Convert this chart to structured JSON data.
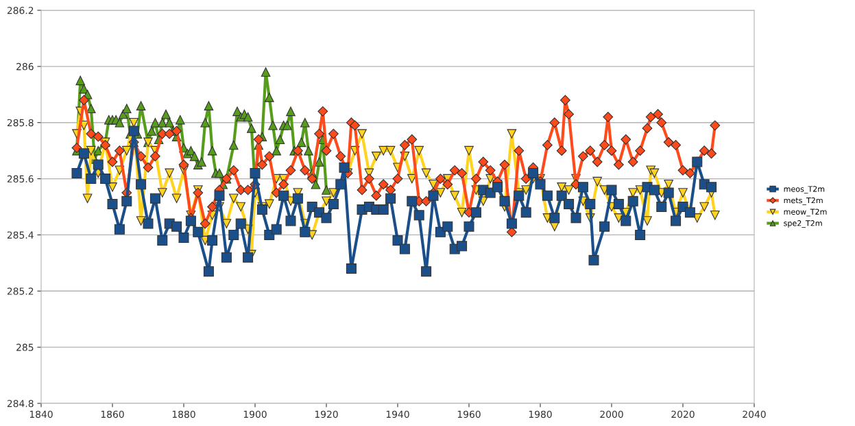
{
  "chart_data": {
    "type": "line",
    "xlim": [
      1840,
      2040
    ],
    "xticks": [
      1840,
      1860,
      1880,
      1900,
      1920,
      1940,
      1960,
      1980,
      2000,
      2020,
      2040
    ],
    "ylim": [
      284.8,
      286.2
    ],
    "yticks": [
      284.8,
      285,
      285.2,
      285.4,
      285.6,
      285.8,
      286,
      286.2
    ],
    "grid": "y",
    "legend": "right",
    "series": [
      {
        "name": "meos_T2m",
        "color": "#1b4f8a",
        "marker": "square",
        "x": [
          1850,
          1852,
          1854,
          1856,
          1858,
          1860,
          1862,
          1864,
          1866,
          1868,
          1870,
          1872,
          1874,
          1876,
          1878,
          1880,
          1882,
          1884,
          1887,
          1888,
          1890,
          1892,
          1894,
          1896,
          1898,
          1900,
          1902,
          1904,
          1906,
          1908,
          1910,
          1912,
          1914,
          1916,
          1918,
          1920,
          1922,
          1924,
          1925,
          1927,
          1930,
          1932,
          1934,
          1936,
          1938,
          1940,
          1942,
          1944,
          1946,
          1948,
          1950,
          1952,
          1954,
          1956,
          1958,
          1960,
          1962,
          1964,
          1966,
          1968,
          1970,
          1972,
          1974,
          1976,
          1978,
          1980,
          1982,
          1984,
          1986,
          1988,
          1990,
          1992,
          1994,
          1995,
          1998,
          2000,
          2002,
          2004,
          2006,
          2008,
          2010,
          2012,
          2014,
          2016,
          2018,
          2020,
          2022,
          2024,
          2026,
          2028
        ],
        "values": [
          285.62,
          285.69,
          285.6,
          285.65,
          285.6,
          285.51,
          285.42,
          285.52,
          285.77,
          285.58,
          285.44,
          285.53,
          285.38,
          285.44,
          285.43,
          285.39,
          285.45,
          285.41,
          285.27,
          285.38,
          285.54,
          285.32,
          285.4,
          285.44,
          285.32,
          285.62,
          285.49,
          285.4,
          285.42,
          285.54,
          285.45,
          285.53,
          285.41,
          285.5,
          285.48,
          285.46,
          285.51,
          285.58,
          285.64,
          285.28,
          285.49,
          285.5,
          285.49,
          285.49,
          285.53,
          285.38,
          285.35,
          285.52,
          285.47,
          285.27,
          285.54,
          285.41,
          285.43,
          285.35,
          285.36,
          285.43,
          285.48,
          285.56,
          285.55,
          285.57,
          285.52,
          285.44,
          285.54,
          285.48,
          285.62,
          285.58,
          285.54,
          285.46,
          285.54,
          285.51,
          285.46,
          285.57,
          285.51,
          285.31,
          285.43,
          285.56,
          285.51,
          285.45,
          285.52,
          285.4,
          285.57,
          285.56,
          285.5,
          285.55,
          285.45,
          285.5,
          285.48,
          285.66,
          285.58,
          285.57
        ]
      },
      {
        "name": "mets_T2m",
        "color": "#ff4a1c",
        "marker": "diamond",
        "x": [
          1850,
          1852,
          1854,
          1856,
          1858,
          1860,
          1862,
          1864,
          1866,
          1868,
          1870,
          1872,
          1874,
          1876,
          1878,
          1880,
          1882,
          1884,
          1886,
          1888,
          1890,
          1892,
          1894,
          1896,
          1898,
          1900,
          1901,
          1902,
          1904,
          1906,
          1908,
          1910,
          1912,
          1914,
          1916,
          1918,
          1919,
          1920,
          1922,
          1924,
          1926,
          1927,
          1928,
          1930,
          1932,
          1934,
          1936,
          1938,
          1940,
          1942,
          1944,
          1946,
          1948,
          1950,
          1952,
          1954,
          1956,
          1958,
          1960,
          1962,
          1964,
          1966,
          1968,
          1970,
          1972,
          1974,
          1976,
          1978,
          1980,
          1982,
          1984,
          1986,
          1987,
          1988,
          1990,
          1992,
          1994,
          1996,
          1998,
          1999,
          2000,
          2002,
          2004,
          2006,
          2008,
          2010,
          2011,
          2013,
          2014,
          2016,
          2018,
          2020,
          2022,
          2024,
          2026,
          2028,
          2029
        ],
        "values": [
          285.71,
          285.88,
          285.76,
          285.75,
          285.72,
          285.66,
          285.7,
          285.55,
          285.73,
          285.68,
          285.64,
          285.68,
          285.76,
          285.76,
          285.77,
          285.65,
          285.46,
          285.55,
          285.44,
          285.5,
          285.56,
          285.6,
          285.63,
          285.56,
          285.56,
          285.58,
          285.74,
          285.65,
          285.68,
          285.55,
          285.58,
          285.63,
          285.7,
          285.63,
          285.6,
          285.76,
          285.84,
          285.7,
          285.76,
          285.68,
          285.62,
          285.8,
          285.79,
          285.56,
          285.6,
          285.54,
          285.58,
          285.56,
          285.6,
          285.72,
          285.74,
          285.52,
          285.52,
          285.55,
          285.6,
          285.58,
          285.63,
          285.62,
          285.48,
          285.6,
          285.66,
          285.63,
          285.59,
          285.65,
          285.41,
          285.7,
          285.6,
          285.64,
          285.59,
          285.72,
          285.8,
          285.7,
          285.88,
          285.83,
          285.58,
          285.68,
          285.7,
          285.66,
          285.72,
          285.82,
          285.7,
          285.65,
          285.74,
          285.66,
          285.7,
          285.78,
          285.82,
          285.83,
          285.8,
          285.73,
          285.72,
          285.63,
          285.62,
          285.66,
          285.7,
          285.69,
          285.79
        ]
      },
      {
        "name": "meow_T2m",
        "color": "#ffd320",
        "marker": "triangle_down",
        "x": [
          1850,
          1851,
          1852,
          1853,
          1854,
          1856,
          1858,
          1860,
          1862,
          1864,
          1866,
          1868,
          1870,
          1872,
          1874,
          1876,
          1878,
          1880,
          1882,
          1884,
          1886,
          1888,
          1890,
          1892,
          1894,
          1896,
          1898,
          1899,
          1900,
          1902,
          1904,
          1906,
          1908,
          1910,
          1912,
          1914,
          1916,
          1918,
          1920,
          1922,
          1924,
          1926,
          1928,
          1930,
          1932,
          1934,
          1936,
          1938,
          1940,
          1942,
          1944,
          1946,
          1948,
          1950,
          1952,
          1954,
          1956,
          1958,
          1960,
          1962,
          1964,
          1966,
          1968,
          1970,
          1972,
          1974,
          1976,
          1978,
          1980,
          1982,
          1984,
          1986,
          1988,
          1990,
          1992,
          1994,
          1996,
          1998,
          2000,
          2002,
          2004,
          2006,
          2008,
          2010,
          2011,
          2012,
          2014,
          2016,
          2018,
          2020,
          2022,
          2024,
          2026,
          2028,
          2029
        ],
        "values": [
          285.76,
          285.84,
          285.79,
          285.53,
          285.7,
          285.62,
          285.73,
          285.57,
          285.63,
          285.7,
          285.8,
          285.45,
          285.73,
          285.7,
          285.55,
          285.62,
          285.53,
          285.63,
          285.47,
          285.56,
          285.38,
          285.47,
          285.5,
          285.44,
          285.53,
          285.5,
          285.42,
          285.33,
          285.55,
          285.5,
          285.51,
          285.6,
          285.6,
          285.52,
          285.55,
          285.44,
          285.4,
          285.48,
          285.52,
          285.55,
          285.58,
          285.62,
          285.7,
          285.76,
          285.62,
          285.68,
          285.7,
          285.7,
          285.64,
          285.68,
          285.6,
          285.7,
          285.62,
          285.58,
          285.55,
          285.6,
          285.54,
          285.48,
          285.7,
          285.56,
          285.52,
          285.6,
          285.58,
          285.5,
          285.76,
          285.55,
          285.56,
          285.6,
          285.6,
          285.46,
          285.43,
          285.57,
          285.56,
          285.6,
          285.52,
          285.46,
          285.59,
          285.56,
          285.5,
          285.46,
          285.48,
          285.55,
          285.56,
          285.45,
          285.63,
          285.62,
          285.55,
          285.58,
          285.48,
          285.55,
          285.48,
          285.46,
          285.5,
          285.55,
          285.47
        ]
      },
      {
        "name": "spe2_T2m",
        "color": "#579d1c",
        "marker": "triangle",
        "x": [
          1850,
          1851,
          1852,
          1853,
          1854,
          1855,
          1856,
          1858,
          1859,
          1860,
          1861,
          1862,
          1863,
          1864,
          1865,
          1866,
          1867,
          1868,
          1870,
          1871,
          1872,
          1873,
          1874,
          1875,
          1876,
          1877,
          1878,
          1879,
          1880,
          1881,
          1882,
          1883,
          1884,
          1885,
          1886,
          1887,
          1888,
          1889,
          1890,
          1891,
          1892,
          1894,
          1895,
          1896,
          1897,
          1898,
          1899,
          1900,
          1901,
          1902,
          1903,
          1904,
          1905,
          1906,
          1907,
          1908,
          1909,
          1910,
          1911,
          1912,
          1913,
          1914,
          1915,
          1916,
          1917,
          1918,
          1919,
          1920
        ],
        "values": [
          285.7,
          285.95,
          285.92,
          285.9,
          285.85,
          285.67,
          285.7,
          285.73,
          285.81,
          285.81,
          285.81,
          285.8,
          285.83,
          285.85,
          285.76,
          285.73,
          285.76,
          285.86,
          285.73,
          285.77,
          285.8,
          285.74,
          285.8,
          285.83,
          285.8,
          285.77,
          285.75,
          285.81,
          285.71,
          285.69,
          285.7,
          285.68,
          285.65,
          285.66,
          285.8,
          285.86,
          285.7,
          285.62,
          285.62,
          285.58,
          285.6,
          285.72,
          285.84,
          285.82,
          285.83,
          285.82,
          285.78,
          285.58,
          285.72,
          285.75,
          285.98,
          285.89,
          285.79,
          285.7,
          285.74,
          285.79,
          285.79,
          285.84,
          285.7,
          285.7,
          285.73,
          285.8,
          285.7,
          285.62,
          285.58,
          285.66,
          285.74,
          285.56
        ]
      }
    ]
  }
}
